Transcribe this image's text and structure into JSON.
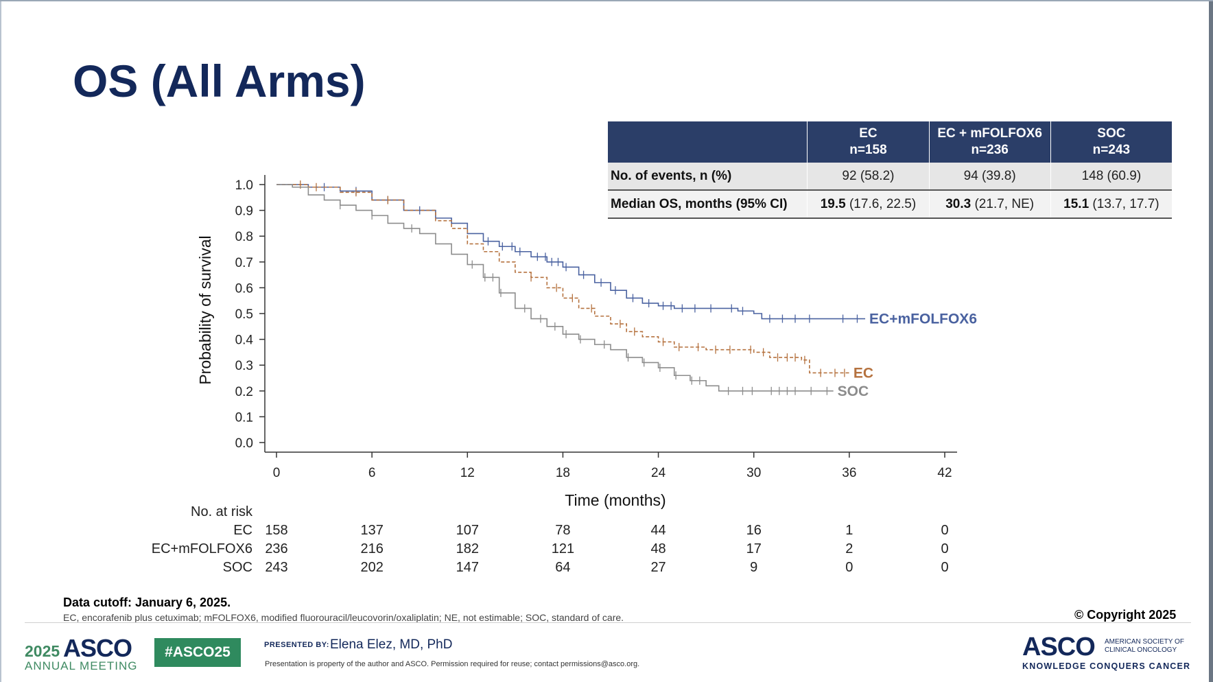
{
  "slide": {
    "title": "OS (All Arms)"
  },
  "summary_table": {
    "headers": [
      {
        "line1": "",
        "line2": ""
      },
      {
        "line1": "EC",
        "line2": "n=158"
      },
      {
        "line1": "EC + mFOLFOX6",
        "line2": "n=236"
      },
      {
        "line1": "SOC",
        "line2": "n=243"
      }
    ],
    "events_row": {
      "label": "No. of events, n (%)",
      "values": [
        "92 (58.2)",
        "94 (39.8)",
        "148 (60.9)"
      ]
    },
    "median_row": {
      "label": "Median OS, months (95% CI)",
      "values": [
        {
          "median": "19.5",
          "ci": "(17.6, 22.5)"
        },
        {
          "median": "30.3",
          "ci": "(21.7, NE)"
        },
        {
          "median": "15.1",
          "ci": "(13.7, 17.7)"
        }
      ]
    }
  },
  "chart_data": {
    "type": "line",
    "subtype": "kaplan-meier-step",
    "title": "",
    "xlabel": "Time (months)",
    "ylabel": "Probability of survival",
    "xlim": [
      0,
      42
    ],
    "ylim": [
      0,
      1.0
    ],
    "x_ticks": [
      "0",
      "6",
      "12",
      "18",
      "24",
      "30",
      "36",
      "42"
    ],
    "y_ticks": [
      "0.0",
      "0.1",
      "0.2",
      "0.3",
      "0.4",
      "0.5",
      "0.6",
      "0.7",
      "0.8",
      "0.9",
      "1.0"
    ],
    "grid": false,
    "series": [
      {
        "name": "EC+mFOLFOX6",
        "color": "#4a62a0",
        "dash": false,
        "points": [
          [
            0,
            1.0
          ],
          [
            2,
            0.99
          ],
          [
            4,
            0.975
          ],
          [
            6,
            0.94
          ],
          [
            8,
            0.9
          ],
          [
            10,
            0.87
          ],
          [
            11,
            0.85
          ],
          [
            12,
            0.81
          ],
          [
            13,
            0.78
          ],
          [
            14,
            0.76
          ],
          [
            15,
            0.74
          ],
          [
            16,
            0.72
          ],
          [
            17,
            0.7
          ],
          [
            18,
            0.68
          ],
          [
            19,
            0.65
          ],
          [
            20,
            0.62
          ],
          [
            21,
            0.59
          ],
          [
            22,
            0.56
          ],
          [
            23,
            0.54
          ],
          [
            24,
            0.53
          ],
          [
            25,
            0.52
          ],
          [
            28,
            0.52
          ],
          [
            29,
            0.51
          ],
          [
            30,
            0.5
          ],
          [
            30.5,
            0.48
          ],
          [
            37,
            0.48
          ]
        ],
        "censor_x": [
          3,
          5,
          7,
          9,
          13.3,
          14.2,
          14.8,
          15.3,
          16.4,
          16.9,
          17.3,
          17.7,
          18.2,
          19.3,
          20.4,
          21.3,
          22.4,
          23.4,
          24.3,
          24.8,
          25.5,
          26.3,
          27.3,
          28.6,
          29.3,
          31,
          31.8,
          32.6,
          33.5,
          35.6,
          36.5
        ]
      },
      {
        "name": "EC",
        "color": "#b5723f",
        "dash": true,
        "points": [
          [
            0,
            1.0
          ],
          [
            2,
            0.99
          ],
          [
            4,
            0.97
          ],
          [
            6,
            0.94
          ],
          [
            8,
            0.9
          ],
          [
            10,
            0.86
          ],
          [
            11,
            0.83
          ],
          [
            12,
            0.77
          ],
          [
            13,
            0.74
          ],
          [
            14,
            0.7
          ],
          [
            15,
            0.66
          ],
          [
            16,
            0.64
          ],
          [
            17,
            0.6
          ],
          [
            18,
            0.56
          ],
          [
            19,
            0.52
          ],
          [
            20,
            0.49
          ],
          [
            21,
            0.46
          ],
          [
            22,
            0.43
          ],
          [
            23,
            0.41
          ],
          [
            24,
            0.39
          ],
          [
            25,
            0.37
          ],
          [
            27,
            0.36
          ],
          [
            30,
            0.35
          ],
          [
            31,
            0.33
          ],
          [
            33,
            0.32
          ],
          [
            33.5,
            0.27
          ],
          [
            36,
            0.27
          ]
        ],
        "censor_x": [
          1.5,
          2.5,
          5,
          7,
          16,
          17.6,
          18.6,
          19.8,
          21.6,
          22.5,
          24.3,
          25.3,
          26.5,
          27.6,
          28.5,
          29.8,
          30.6,
          31.5,
          32.1,
          32.6,
          33.2,
          34.2,
          35.1,
          35.7
        ]
      },
      {
        "name": "SOC",
        "color": "#8c8c8c",
        "dash": false,
        "points": [
          [
            0,
            1.0
          ],
          [
            1,
            0.99
          ],
          [
            2,
            0.96
          ],
          [
            3,
            0.94
          ],
          [
            4,
            0.92
          ],
          [
            5,
            0.9
          ],
          [
            6,
            0.88
          ],
          [
            7,
            0.85
          ],
          [
            8,
            0.83
          ],
          [
            9,
            0.81
          ],
          [
            10,
            0.77
          ],
          [
            11,
            0.73
          ],
          [
            12,
            0.69
          ],
          [
            13,
            0.64
          ],
          [
            14,
            0.58
          ],
          [
            15,
            0.52
          ],
          [
            16,
            0.48
          ],
          [
            17,
            0.45
          ],
          [
            18,
            0.42
          ],
          [
            19,
            0.4
          ],
          [
            20,
            0.38
          ],
          [
            21,
            0.36
          ],
          [
            22,
            0.33
          ],
          [
            23,
            0.31
          ],
          [
            24,
            0.29
          ],
          [
            25,
            0.26
          ],
          [
            26,
            0.24
          ],
          [
            27,
            0.22
          ],
          [
            27.8,
            0.2
          ],
          [
            35,
            0.2
          ]
        ],
        "censor_x": [
          4,
          6,
          8.5,
          12.3,
          13.1,
          13.6,
          14.1,
          15.6,
          16.6,
          17.5,
          18.2,
          19.1,
          20.6,
          22.1,
          23.1,
          24.1,
          25.1,
          26.1,
          26.6,
          28.4,
          29.3,
          29.9,
          31.1,
          31.6,
          32.1,
          32.6,
          33.6,
          34.6
        ]
      }
    ],
    "curve_labels": [
      {
        "text": "EC+mFOLFOX6",
        "series": "EC+mFOLFOX6"
      },
      {
        "text": "EC",
        "series": "EC"
      },
      {
        "text": "SOC",
        "series": "SOC"
      }
    ]
  },
  "risk_table": {
    "title": "No. at risk",
    "x": [
      0,
      6,
      12,
      18,
      24,
      30,
      36,
      42
    ],
    "rows": [
      {
        "label": "EC",
        "values": [
          "158",
          "137",
          "107",
          "78",
          "44",
          "16",
          "1",
          "0"
        ]
      },
      {
        "label": "EC+mFOLFOX6",
        "values": [
          "236",
          "216",
          "182",
          "121",
          "48",
          "17",
          "2",
          "0"
        ]
      },
      {
        "label": "SOC",
        "values": [
          "243",
          "202",
          "147",
          "64",
          "27",
          "9",
          "0",
          "0"
        ]
      }
    ]
  },
  "footer": {
    "data_cutoff": "Data cutoff: January 6, 2025.",
    "footnote": "EC, encorafenib plus cetuximab; mFOLFOX6, modified fluorouracil/leucovorin/oxaliplatin; NE, not estimable; SOC, standard of care.",
    "copyright": "© Copyright 2025",
    "meeting_year": "2025",
    "meeting_brand": "ASCO",
    "meeting_sub": "ANNUAL MEETING",
    "hashtag": "#ASCO25",
    "presented_by_label": "PRESENTED BY:",
    "presenter": "Elena Elez, MD, PhD",
    "property_note": "Presentation is property of the author and ASCO. Permission required for reuse; contact permissions@asco.org.",
    "org_brand": "ASCO",
    "org_name": "AMERICAN SOCIETY OF CLINICAL ONCOLOGY",
    "org_tagline": "KNOWLEDGE CONQUERS CANCER"
  }
}
